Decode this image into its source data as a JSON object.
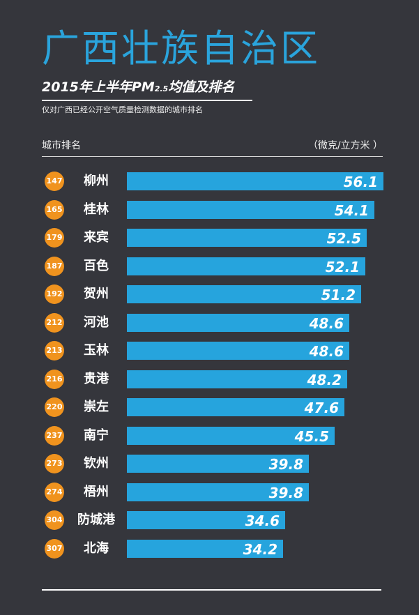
{
  "header": {
    "title": "广西壮族自治区",
    "subtitle_prefix": "2015年上半年PM",
    "subtitle_sub": "2.5",
    "subtitle_suffix": "均值及排名",
    "note": "仅对广西已经公开空气质量检测数据的城市排名",
    "column_left": "城市排名",
    "column_right": "（微克/立方米 ）"
  },
  "colors": {
    "background": "#35363c",
    "title": "#2aa4dc",
    "bar": "#26a4dd",
    "rank_badge": "#f0931e"
  },
  "chart_data": {
    "type": "bar",
    "orientation": "horizontal",
    "title": "2015年上半年PM2.5均值及排名",
    "unit": "（微克/立方米 ）",
    "categories": [
      "柳州",
      "桂林",
      "来宾",
      "百色",
      "贺州",
      "河池",
      "玉林",
      "贵港",
      "崇左",
      "南宁",
      "钦州",
      "梧州",
      "防城港",
      "北海"
    ],
    "ranks": [
      "147",
      "165",
      "179",
      "187",
      "192",
      "212",
      "213",
      "216",
      "220",
      "237",
      "273",
      "274",
      "304",
      "307"
    ],
    "values": [
      56.1,
      54.1,
      52.5,
      52.1,
      51.2,
      48.6,
      48.6,
      48.2,
      47.6,
      45.5,
      39.8,
      39.8,
      34.6,
      34.2
    ],
    "value_labels": [
      "56.1",
      "54.1",
      "52.5",
      "52.1",
      "51.2",
      "48.6",
      "48.6",
      "48.2",
      "47.6",
      "45.5",
      "39.8",
      "39.8",
      "34.6",
      "34.2"
    ],
    "grid": false,
    "legend": "none"
  }
}
